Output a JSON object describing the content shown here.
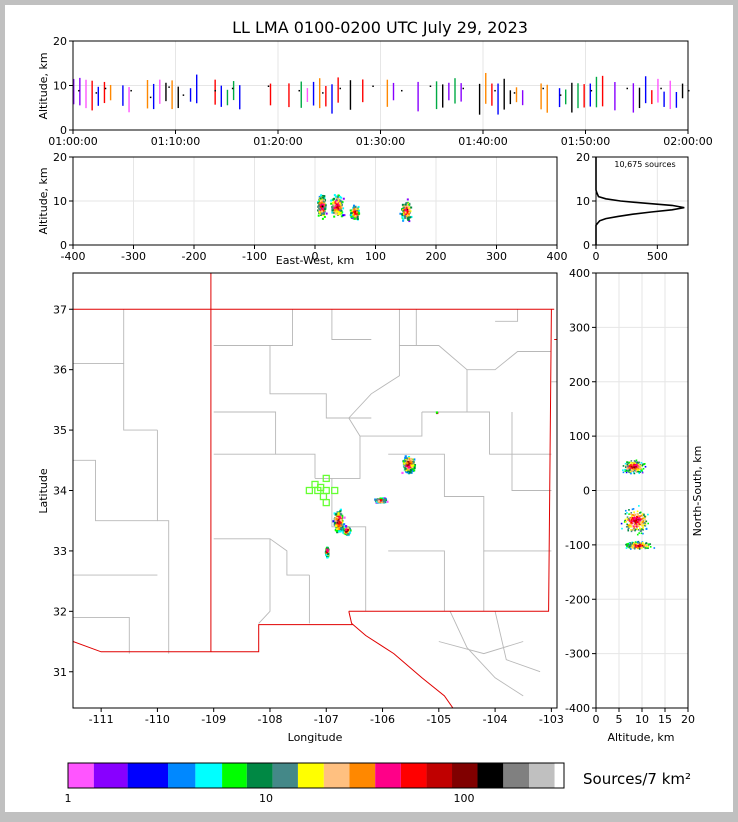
{
  "title": "LL LMA 0100-0200 UTC July 29, 2023",
  "colors": {
    "border": "#c0c0c0",
    "panel_background": "#ffffff",
    "state_border": "#e00000",
    "county_line": "#b8b8b8",
    "station_marker": "#66ff33",
    "grid": "#e6e6e6"
  },
  "chart_data": [
    {
      "id": "time-altitude",
      "type": "scatter",
      "xlabel": "",
      "ylabel": "Altitude, km",
      "xlim": [
        "01:00:00",
        "02:00:00"
      ],
      "ylim": [
        0,
        20
      ],
      "xticks": [
        "01:00:00",
        "01:10:00",
        "01:20:00",
        "01:30:00",
        "01:40:00",
        "01:50:00",
        "02:00:00"
      ],
      "yticks": [
        0,
        10,
        20
      ],
      "points": [
        {
          "t": 0.5,
          "alt": 9
        },
        {
          "t": 2.2,
          "alt": 8.5
        },
        {
          "t": 3.1,
          "alt": 9.5
        },
        {
          "t": 5.6,
          "alt": 9
        },
        {
          "t": 7.5,
          "alt": 7.5
        },
        {
          "t": 9.3,
          "alt": 9.8
        },
        {
          "t": 10.7,
          "alt": 8
        },
        {
          "t": 13.8,
          "alt": 9
        },
        {
          "t": 15.5,
          "alt": 9.5
        },
        {
          "t": 19.0,
          "alt": 10
        },
        {
          "t": 22.0,
          "alt": 9
        },
        {
          "t": 24.3,
          "alt": 8.5
        },
        {
          "t": 26.0,
          "alt": 9.5
        },
        {
          "t": 29.2,
          "alt": 10
        },
        {
          "t": 32.0,
          "alt": 9
        },
        {
          "t": 34.8,
          "alt": 10
        },
        {
          "t": 38.0,
          "alt": 9.5
        },
        {
          "t": 41.1,
          "alt": 9
        },
        {
          "t": 43.0,
          "alt": 8.5
        },
        {
          "t": 45.8,
          "alt": 9.5
        },
        {
          "t": 47.5,
          "alt": 8
        },
        {
          "t": 50.5,
          "alt": 9
        },
        {
          "t": 54.0,
          "alt": 9.5
        },
        {
          "t": 57.3,
          "alt": 9.5
        },
        {
          "t": 60.0,
          "alt": 9
        }
      ]
    },
    {
      "id": "ew-altitude",
      "type": "scatter",
      "xlabel": "East-West, km",
      "ylabel": "Altitude, km",
      "xlim": [
        -400,
        400
      ],
      "ylim": [
        0,
        20
      ],
      "xticks": [
        -400,
        -300,
        -200,
        -100,
        0,
        100,
        200,
        300,
        400
      ],
      "yticks": [
        0,
        10,
        20
      ],
      "clusters": [
        {
          "x": 10,
          "alt": 9,
          "sx": 6,
          "sa": 2.5
        },
        {
          "x": 35,
          "alt": 9,
          "sx": 9,
          "sa": 2.5
        },
        {
          "x": 65,
          "alt": 7.5,
          "sx": 6,
          "sa": 1.5
        },
        {
          "x": 150,
          "alt": 8,
          "sx": 7,
          "sa": 2
        }
      ]
    },
    {
      "id": "altitude-histogram",
      "type": "line",
      "annotation": "10,675 sources",
      "xlim": [
        0,
        750
      ],
      "ylim": [
        0,
        20
      ],
      "xticks": [
        0,
        500
      ],
      "yticks": [
        0,
        10,
        20
      ],
      "profile": [
        {
          "count": 0,
          "alt": 0
        },
        {
          "count": 0,
          "alt": 4.5
        },
        {
          "count": 15,
          "alt": 5
        },
        {
          "count": 30,
          "alt": 5.5
        },
        {
          "count": 80,
          "alt": 6
        },
        {
          "count": 180,
          "alt": 6.5
        },
        {
          "count": 300,
          "alt": 7
        },
        {
          "count": 450,
          "alt": 7.5
        },
        {
          "count": 620,
          "alt": 8
        },
        {
          "count": 720,
          "alt": 8.5
        },
        {
          "count": 620,
          "alt": 9
        },
        {
          "count": 400,
          "alt": 9.5
        },
        {
          "count": 200,
          "alt": 10
        },
        {
          "count": 80,
          "alt": 10.5
        },
        {
          "count": 20,
          "alt": 11
        },
        {
          "count": 5,
          "alt": 12
        },
        {
          "count": 0,
          "alt": 12.5
        },
        {
          "count": 0,
          "alt": 20
        }
      ]
    },
    {
      "id": "plan-view",
      "type": "heatmap",
      "xlabel": "Longitude",
      "ylabel": "Latitude",
      "xlim": [
        -111.5,
        -102.9
      ],
      "ylim": [
        30.4,
        37.6
      ],
      "xticks": [
        -111,
        -110,
        -109,
        -108,
        -107,
        -106,
        -105,
        -104,
        -103
      ],
      "yticks": [
        31,
        32,
        33,
        34,
        35,
        36,
        37
      ],
      "clusters": [
        {
          "lon": -106.8,
          "lat": 33.5,
          "slon": 0.07,
          "slat": 0.16
        },
        {
          "lon": -106.65,
          "lat": 33.35,
          "slon": 0.05,
          "slat": 0.06
        },
        {
          "lon": -107.0,
          "lat": 33.0,
          "slon": 0.02,
          "slat": 0.07
        },
        {
          "lon": -106.05,
          "lat": 33.85,
          "slon": 0.08,
          "slat": 0.03
        },
        {
          "lon": -105.55,
          "lat": 34.45,
          "slon": 0.09,
          "slat": 0.12
        },
        {
          "lon": -105.05,
          "lat": 35.3,
          "slon": 0.01,
          "slat": 0.01
        }
      ],
      "stations": [
        {
          "lon": -107.0,
          "lat": 34.2
        },
        {
          "lon": -107.2,
          "lat": 34.1
        },
        {
          "lon": -107.1,
          "lat": 34.05
        },
        {
          "lon": -107.3,
          "lat": 34.0
        },
        {
          "lon": -107.15,
          "lat": 34.0
        },
        {
          "lon": -107.0,
          "lat": 34.0
        },
        {
          "lon": -106.85,
          "lat": 34.0
        },
        {
          "lon": -107.05,
          "lat": 33.9
        },
        {
          "lon": -107.0,
          "lat": 33.8
        }
      ]
    },
    {
      "id": "altitude-ns",
      "type": "scatter",
      "xlabel": "Altitude, km",
      "ylabel": "North-South, km",
      "xlim": [
        0,
        20
      ],
      "ylim": [
        -400,
        400
      ],
      "xticks": [
        0,
        5,
        10,
        15,
        20
      ],
      "yticks": [
        -400,
        -300,
        -200,
        -100,
        0,
        100,
        200,
        300,
        400
      ],
      "clusters": [
        {
          "alt": 8,
          "ns": 45,
          "sa": 2,
          "sn": 10
        },
        {
          "alt": 8.5,
          "ns": -55,
          "sa": 2.5,
          "sn": 20
        },
        {
          "alt": 9,
          "ns": -100,
          "sa": 2.5,
          "sn": 6
        }
      ]
    }
  ],
  "colorbar": {
    "label": "Sources/7 km²",
    "tick_labels": [
      "1",
      "10",
      "100"
    ],
    "tick_values": [
      1,
      10,
      100
    ],
    "range": [
      1,
      320
    ],
    "colors": [
      "#ff55ff",
      "#8800ff",
      "#0000ff",
      "#0088ff",
      "#00ffff",
      "#00ff00",
      "#008844",
      "#448888",
      "#ffff00",
      "#ffc080",
      "#ff8800",
      "#ff0088",
      "#ff0000",
      "#c00000",
      "#800000",
      "#000000",
      "#808080",
      "#c0c0c0",
      "#ffffff"
    ]
  }
}
